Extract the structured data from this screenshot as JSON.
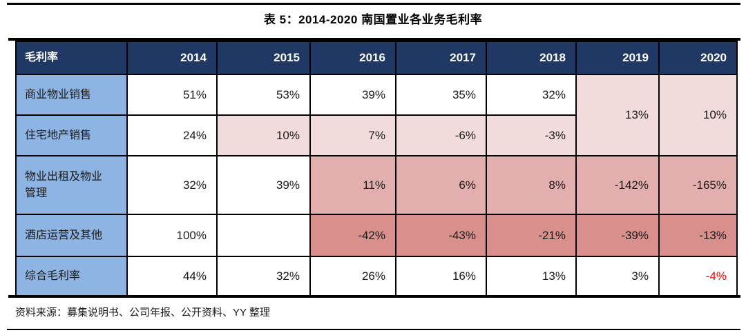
{
  "page": {
    "title": "表 5：2014-2020 南国置业各业务毛利率",
    "source_note": "资料来源：募集说明书、公司年报、公开资料、YY 整理"
  },
  "colors": {
    "header_bg": "#1F3864",
    "header_text": "#FFFFFF",
    "label_bg": "#8DB4E2",
    "pink_light": "#F2DCDB",
    "pink_medium": "#E2AFAE",
    "pink_dark": "#D9908D",
    "negative_text": "#FF0000",
    "border": "#000000",
    "text": "#1A1A1A"
  },
  "table": {
    "header": [
      "毛利率",
      "2014",
      "2015",
      "2016",
      "2017",
      "2018",
      "2019",
      "2020"
    ],
    "rows": [
      {
        "label": "商业物业销售",
        "values": [
          "51%",
          "53%",
          "39%",
          "35%",
          "32%"
        ]
      },
      {
        "label": "住宅地产销售",
        "values": [
          "24%",
          "10%",
          "7%",
          "-6%",
          "-3%"
        ]
      },
      {
        "label": "物业出租及物业管理",
        "values": [
          "32%",
          "39%",
          "11%",
          "6%",
          "8%",
          "-142%",
          "-165%"
        ]
      },
      {
        "label": "酒店运营及其他",
        "values": [
          "100%",
          "",
          "-42%",
          "-43%",
          "-21%",
          "-39%",
          "-13%"
        ]
      },
      {
        "label": "综合毛利率",
        "values": [
          "44%",
          "32%",
          "26%",
          "16%",
          "13%",
          "3%",
          "-4%"
        ]
      }
    ],
    "merged_2019_2020": {
      "y2019": "13%",
      "y2020": "10%"
    }
  }
}
